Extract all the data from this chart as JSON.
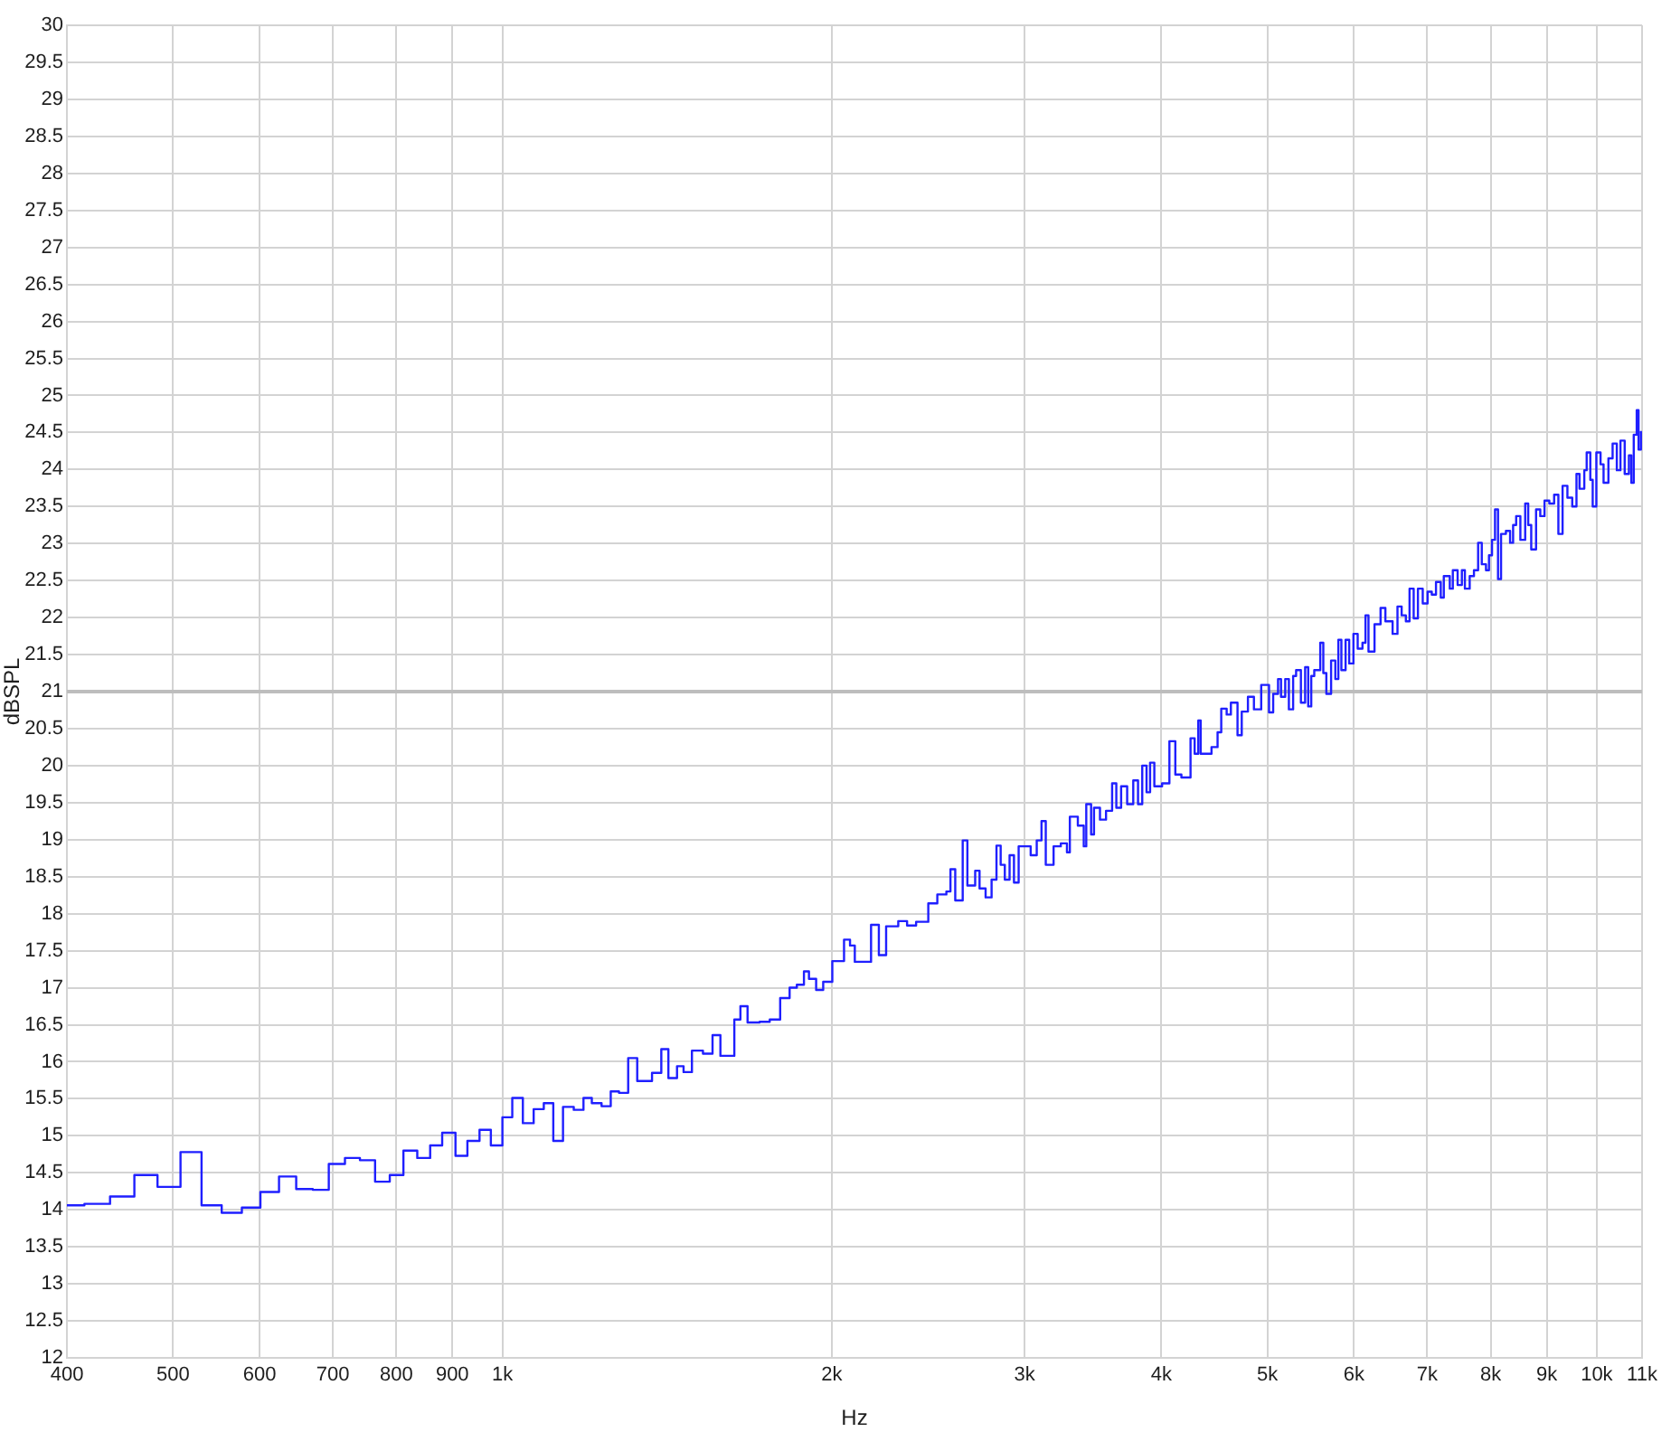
{
  "chart_data": {
    "type": "step",
    "xlabel": "Hz",
    "ylabel": "dBSPL",
    "color": "#1f1fff",
    "log": "x",
    "grid": true,
    "marker": "none",
    "line_style": "solid",
    "xlim": [
      400,
      11000
    ],
    "ylim": [
      12,
      30
    ],
    "xticks": [
      400,
      500,
      600,
      700,
      800,
      900,
      {
        "value": 1000,
        "label": "1k"
      },
      {
        "value": 2000,
        "label": "2k"
      },
      {
        "value": 3000,
        "label": "3k"
      },
      {
        "value": 4000,
        "label": "4k"
      },
      {
        "value": 5000,
        "label": "5k"
      },
      {
        "value": 6000,
        "label": "6k"
      },
      {
        "value": 7000,
        "label": "7k"
      },
      {
        "value": 8000,
        "label": "8k"
      },
      {
        "value": 9000,
        "label": "9k"
      },
      {
        "value": 10000,
        "label": "10k"
      },
      {
        "value": 11000,
        "label": "11k"
      }
    ],
    "yticks": [
      12,
      12.5,
      13,
      13.5,
      14,
      14.5,
      15,
      15.5,
      16,
      16.5,
      17,
      17.5,
      18,
      18.5,
      19,
      19.5,
      20,
      20.5,
      21,
      21.5,
      22,
      22.5,
      23,
      23.5,
      24,
      24.5,
      25,
      25.5,
      26,
      26.5,
      27,
      27.5,
      28,
      28.5,
      29,
      29.5,
      30
    ],
    "ref_lines": [
      {
        "axis": "y",
        "value": 21,
        "color": "#bdbdbd"
      }
    ],
    "x": [
      400,
      415,
      438,
      461,
      484,
      508,
      531,
      554,
      578,
      601,
      625,
      648,
      671,
      694,
      718,
      741,
      765,
      789,
      812,
      836,
      859,
      881,
      906,
      929,
      953,
      976,
      1000,
      1021,
      1044,
      1068,
      1091,
      1113,
      1136,
      1162,
      1186,
      1207,
      1232,
      1256,
      1278,
      1303,
      1328,
      1370,
      1397,
      1418,
      1444,
      1464,
      1490,
      1525,
      1556,
      1582,
      1629,
      1650,
      1675,
      1718,
      1755,
      1794,
      1830,
      1858,
      1886,
      1906,
      1935,
      1964,
      2002,
      2052,
      2078,
      2099,
      2172,
      2208,
      2242,
      2300,
      2343,
      2388,
      2450,
      2497,
      2545,
      2567,
      2593,
      2634,
      2660,
      2704,
      2729,
      2764,
      2799,
      2828,
      2853,
      2878,
      2907,
      2934,
      2963,
      3039,
      3078,
      3109,
      3137,
      3189,
      3238,
      3280,
      3300,
      3356,
      3398,
      3416,
      3451,
      3472,
      3516,
      3561,
      3607,
      3639,
      3676,
      3723,
      3771,
      3809,
      3843,
      3878,
      3907,
      3942,
      4007,
      4069,
      4120,
      4173,
      4254,
      4291,
      4324,
      4346,
      4446,
      4503,
      4538,
      4590,
      4631,
      4696,
      4738,
      4800,
      4861,
      4936,
      5018,
      5062,
      5114,
      5146,
      5192,
      5232,
      5279,
      5312,
      5366,
      5414,
      5449,
      5484,
      5519,
      5589,
      5625,
      5661,
      5718,
      5769,
      5806,
      5843,
      5895,
      5940,
      5993,
      6047,
      6108,
      6147,
      6186,
      6265,
      6345,
      6410,
      6508,
      6575,
      6633,
      6692,
      6744,
      6803,
      6864,
      6934,
      7005,
      7067,
      7130,
      7202,
      7248,
      7340,
      7387,
      7462,
      7529,
      7577,
      7654,
      7723,
      7791,
      7851,
      7921,
      7971,
      8022,
      8073,
      8124,
      8176,
      8260,
      8333,
      8386,
      8440,
      8515,
      8602,
      8657,
      8712,
      8801,
      8879,
      8959,
      9050,
      9142,
      9224,
      9306,
      9401,
      9497,
      9582,
      9643,
      9741,
      9790,
      9865,
      9915,
      9991,
      10080,
      10144,
      10248,
      10339,
      10431,
      10511,
      10605,
      10700,
      10754,
      10809,
      10877,
      10919,
      10974
    ],
    "values": [
      14.06,
      14.08,
      14.18,
      14.47,
      14.31,
      14.78,
      14.06,
      13.96,
      14.03,
      14.24,
      14.45,
      14.28,
      14.27,
      14.62,
      14.7,
      14.67,
      14.38,
      14.47,
      14.8,
      14.7,
      14.87,
      15.04,
      14.73,
      14.93,
      15.08,
      14.87,
      15.25,
      15.51,
      15.17,
      15.36,
      15.44,
      14.93,
      15.39,
      15.35,
      15.51,
      15.44,
      15.4,
      15.6,
      15.58,
      16.05,
      15.74,
      15.85,
      16.17,
      15.78,
      15.94,
      15.86,
      16.15,
      16.11,
      16.36,
      16.08,
      16.57,
      16.75,
      16.53,
      16.54,
      16.57,
      16.86,
      17.0,
      17.04,
      17.22,
      17.12,
      16.97,
      17.08,
      17.36,
      17.65,
      17.57,
      17.35,
      17.85,
      17.44,
      17.83,
      17.9,
      17.84,
      17.89,
      18.14,
      18.26,
      18.3,
      18.6,
      18.18,
      18.99,
      18.38,
      18.58,
      18.34,
      18.22,
      18.46,
      18.92,
      18.66,
      18.46,
      18.79,
      18.42,
      18.91,
      18.79,
      18.99,
      19.25,
      18.66,
      18.91,
      18.95,
      18.83,
      19.31,
      19.19,
      18.91,
      19.48,
      19.07,
      19.43,
      19.27,
      19.39,
      19.76,
      19.43,
      19.72,
      19.48,
      19.8,
      19.48,
      20.0,
      19.64,
      20.04,
      19.72,
      19.76,
      20.33,
      19.88,
      19.84,
      20.37,
      20.16,
      20.61,
      20.16,
      20.25,
      20.45,
      20.77,
      20.69,
      20.85,
      20.41,
      20.73,
      20.93,
      20.76,
      21.09,
      20.72,
      20.97,
      21.17,
      20.93,
      21.17,
      20.76,
      21.21,
      21.29,
      20.85,
      21.33,
      20.8,
      21.21,
      21.29,
      21.66,
      21.25,
      20.97,
      21.42,
      21.17,
      21.7,
      21.29,
      21.7,
      21.38,
      21.78,
      21.58,
      21.66,
      22.03,
      21.54,
      21.91,
      22.13,
      21.95,
      21.78,
      22.15,
      22.03,
      21.95,
      22.39,
      21.99,
      22.39,
      22.19,
      22.35,
      22.31,
      22.48,
      22.27,
      22.56,
      22.39,
      22.64,
      22.44,
      22.64,
      22.39,
      22.56,
      22.64,
      23.01,
      22.72,
      22.64,
      22.84,
      23.05,
      23.46,
      22.52,
      23.13,
      23.17,
      23.01,
      23.25,
      23.37,
      23.05,
      23.54,
      23.25,
      22.92,
      23.46,
      23.37,
      23.58,
      23.54,
      23.66,
      23.13,
      23.78,
      23.62,
      23.5,
      23.94,
      23.74,
      23.99,
      24.23,
      23.86,
      23.5,
      24.23,
      24.07,
      23.82,
      24.15,
      24.35,
      23.99,
      24.39,
      23.94,
      24.19,
      23.82,
      24.47,
      24.8,
      24.27,
      24.52
    ]
  }
}
